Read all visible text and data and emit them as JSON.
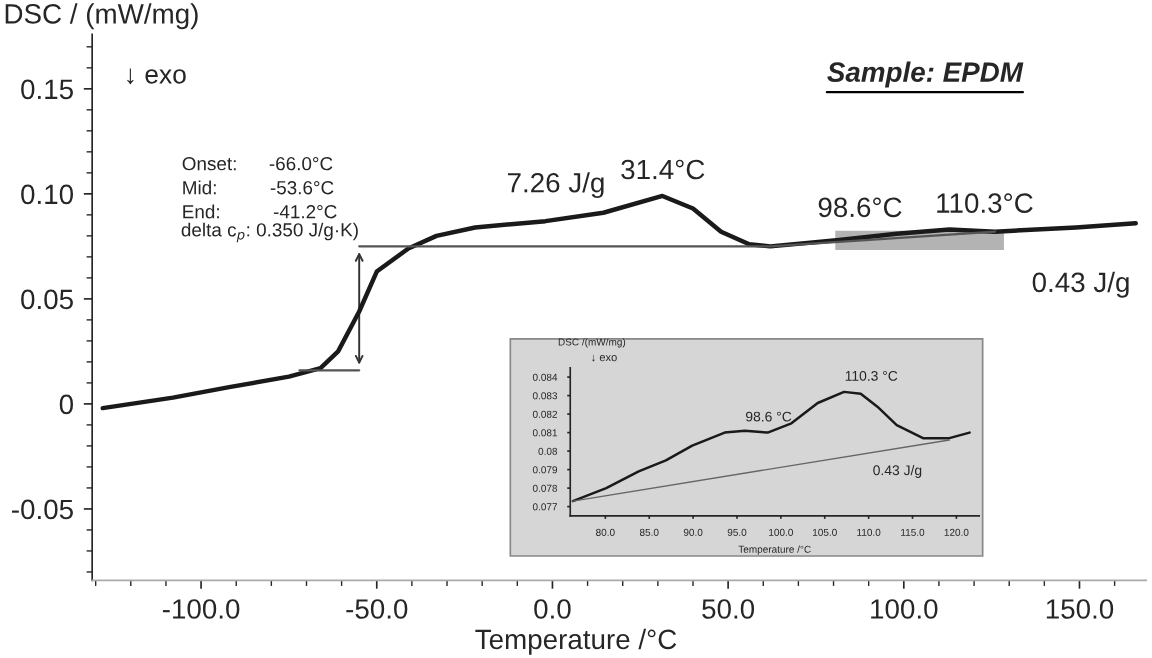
{
  "chart_data": [
    {
      "type": "line",
      "title": "Sample: EPDM",
      "xlabel": "Temperature /°C",
      "ylabel": "DSC / (mW/mg)",
      "xlim": [
        -131,
        169
      ],
      "ylim": [
        -0.084,
        0.176
      ],
      "xticks": [
        {
          "value": -100,
          "label": "-100.0"
        },
        {
          "value": -50,
          "label": "-50.0"
        },
        {
          "value": 0,
          "label": "0.0"
        },
        {
          "value": 50,
          "label": "50.0"
        },
        {
          "value": 100,
          "label": "100.0"
        },
        {
          "value": 150,
          "label": "150.0"
        }
      ],
      "yticks": [
        {
          "value": -0.05,
          "label": "-0.05"
        },
        0,
        {
          "value": 0.05,
          "label": "0.05"
        },
        {
          "value": 0.1,
          "label": "0.10"
        },
        {
          "value": 0.15,
          "label": "0.15"
        }
      ],
      "series": [
        {
          "color": "#1a1a1a",
          "x": [
            -128,
            -108,
            -92,
            -75,
            -66,
            -61,
            -55,
            -50,
            -41,
            -33,
            -22,
            -2,
            14.5,
            31.3,
            40,
            48,
            56,
            62,
            81.6,
            98,
            113,
            126,
            149,
            166
          ],
          "values": [
            -0.002,
            0.003,
            0.008,
            0.013,
            0.017,
            0.025,
            0.044,
            0.063,
            0.074,
            0.08,
            0.084,
            0.087,
            0.091,
            0.099,
            0.093,
            0.082,
            0.076,
            0.075,
            0.078,
            0.081,
            0.083,
            0.082,
            0.084,
            0.086
          ]
        },
        {
          "color": "#555555",
          "x": [
            -55,
            62,
            126
          ],
          "values": [
            0.075,
            0.075,
            0.082
          ]
        },
        {
          "color": "#555555",
          "x": [
            -72,
            -55
          ],
          "values": [
            0.016,
            0.016
          ]
        }
      ],
      "annotations": [
        "↓ exo",
        "Onset:      -66.0°C",
        "Mid:          -53.6°C",
        "End:          -41.2°C",
        {
          "text": "delta c$_{p}$: 0.350 J/g·K)",
          "x": -55,
          "y": 0.075
        },
        "7.26 J/g",
        {
          "text": "31.4°C",
          "x": 31.4,
          "y": 0.099
        },
        {
          "text": "98.6°C",
          "x": 98.6,
          "y": 0.081
        },
        {
          "text": "110.3°C",
          "x": 110.3,
          "y": 0.083
        },
        "0.43 J/g"
      ]
    },
    {
      "type": "line",
      "xlabel": "Temperature /°C",
      "ylabel": "DSC /(mW/mg)",
      "xlim": [
        76,
        122.6
      ],
      "ylim": [
        0.0765,
        0.0845
      ],
      "xticks": [
        {
          "value": 80,
          "label": "80.0"
        },
        {
          "value": 85,
          "label": "85.0"
        },
        {
          "value": 90,
          "label": "90.0"
        },
        {
          "value": 95,
          "label": "95.0"
        },
        {
          "value": 100,
          "label": "100.0"
        },
        {
          "value": 105,
          "label": "105.0"
        },
        {
          "value": 110,
          "label": "110.0"
        },
        {
          "value": 115,
          "label": "115.0"
        },
        {
          "value": 120,
          "label": "120.0"
        }
      ],
      "yticks": [
        0.077,
        0.078,
        0.079,
        0.08,
        0.081,
        0.082,
        0.083,
        0.084
      ],
      "series": [
        {
          "color": "#1a1a1a",
          "x": [
            76.3,
            80.1,
            83.8,
            86.9,
            89.9,
            93.6,
            95.9,
            98.5,
            101.2,
            104.2,
            107.2,
            109.1,
            111.0,
            113.2,
            116.2,
            119.2,
            121.5
          ],
          "values": [
            0.0773,
            0.078,
            0.0789,
            0.0795,
            0.0803,
            0.081,
            0.0811,
            0.081,
            0.0815,
            0.0826,
            0.0832,
            0.0831,
            0.0824,
            0.0814,
            0.0807,
            0.0807,
            0.081
          ]
        },
        {
          "color": "#666666",
          "x": [
            76.3,
            119.2
          ],
          "values": [
            0.0773,
            0.0806
          ]
        }
      ],
      "annotations": [
        "↓ exo",
        {
          "text": "98.6 °C",
          "x": 98.6,
          "y": 0.081
        },
        {
          "text": "110.3 °C",
          "x": 110.3,
          "y": 0.0832
        },
        "0.43 J/g"
      ]
    }
  ]
}
